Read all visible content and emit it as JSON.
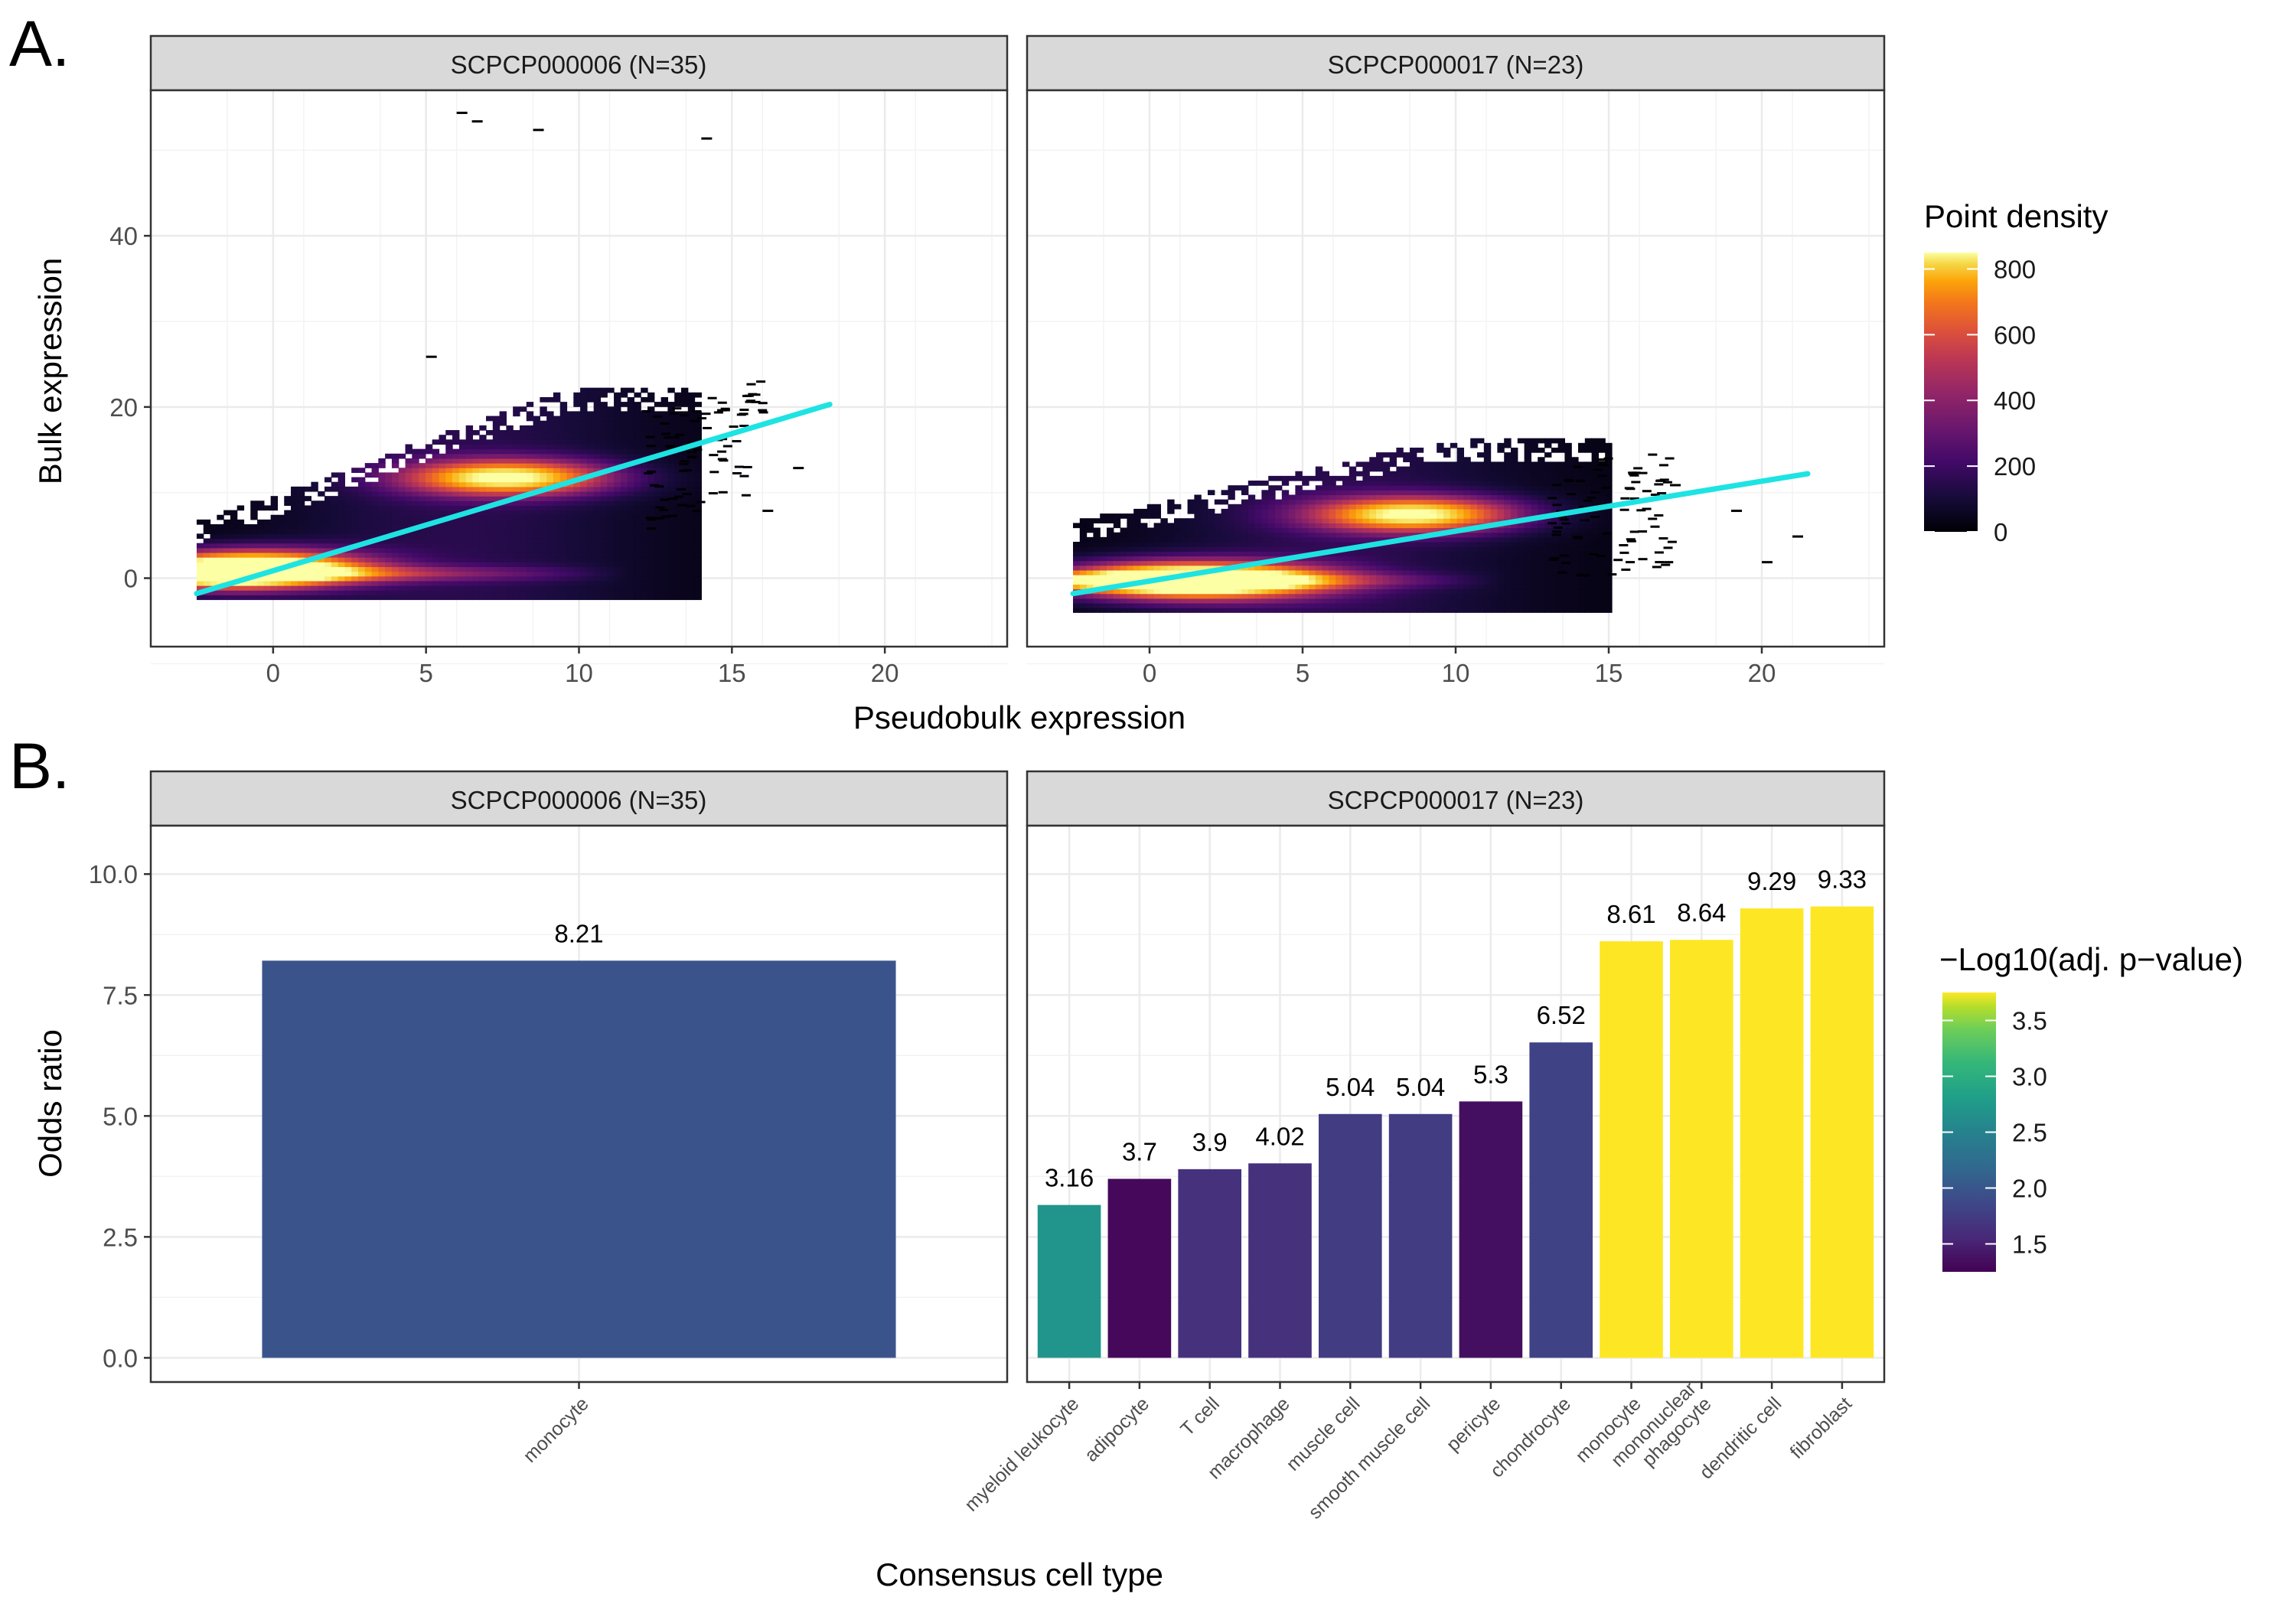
{
  "figure": {
    "panel_a_letter": "A.",
    "panel_b_letter": "B."
  },
  "colors": {
    "fit_line": "#1ee3e3",
    "strip_background": "#d9d9d9",
    "grid": "#ebebeb"
  },
  "chart_data": [
    {
      "type": "heatmap",
      "panel": "A",
      "xlabel": "Pseudobulk expression",
      "ylabel": "Bulk expression",
      "xlim": [
        -4,
        24
      ],
      "ylim": [
        -8,
        57
      ],
      "x_ticks": [
        0,
        5,
        10,
        15,
        20
      ],
      "y_ticks": [
        0,
        20,
        40
      ],
      "grid": true,
      "legend": {
        "title": "Point density",
        "ticks": [
          0,
          200,
          400,
          600,
          800
        ],
        "range": [
          0,
          850
        ],
        "colormap": "inferno",
        "placement": "right"
      },
      "facets": [
        {
          "label": "SCPCP000006 (N=35)",
          "fit_line": {
            "x": [
              -2.5,
              18.2
            ],
            "y": [
              -1.8,
              20.3
            ]
          },
          "dense_region": {
            "x": [
              -2.5,
              14
            ],
            "y": [
              -2.5,
              22
            ]
          },
          "hotspots": [
            {
              "x": 7.5,
              "y": 11.5,
              "density": 800
            },
            {
              "x": -2,
              "y": 0.5,
              "density": 800
            },
            {
              "x": 0,
              "y": 1,
              "density": 650
            }
          ],
          "outliers": [
            {
              "x": 6,
              "y": 54.5
            },
            {
              "x": 6.5,
              "y": 53.5
            },
            {
              "x": 8.5,
              "y": 52.5
            },
            {
              "x": 14,
              "y": 51.5
            },
            {
              "x": 5,
              "y": 26
            },
            {
              "x": 16,
              "y": 8
            },
            {
              "x": 17,
              "y": 13
            }
          ]
        },
        {
          "label": "SCPCP000017 (N=23)",
          "fit_line": {
            "x": [
              -2.5,
              21.5
            ],
            "y": [
              -1.8,
              12.2
            ]
          },
          "dense_region": {
            "x": [
              -2.5,
              15
            ],
            "y": [
              -4,
              16
            ]
          },
          "hotspots": [
            {
              "x": 8.5,
              "y": 7.2,
              "density": 800
            },
            {
              "x": 0,
              "y": -0.5,
              "density": 800
            },
            {
              "x": 3,
              "y": -0.5,
              "density": 700
            }
          ],
          "outliers": [
            {
              "x": 17,
              "y": 11
            },
            {
              "x": 19,
              "y": 8
            },
            {
              "x": 21,
              "y": 5
            },
            {
              "x": 20,
              "y": 2
            }
          ]
        }
      ]
    },
    {
      "type": "bar",
      "panel": "B",
      "xlabel": "Consensus cell type",
      "ylabel": "Odds ratio",
      "ylim": [
        -0.5,
        11
      ],
      "y_ticks": [
        0.0,
        2.5,
        5.0,
        7.5,
        10.0
      ],
      "y_tick_labels": [
        "0.0",
        "2.5",
        "5.0",
        "7.5",
        "10.0"
      ],
      "grid": true,
      "legend": {
        "title": "−Log10(adj. p−value)",
        "ticks": [
          1.5,
          2.0,
          2.5,
          3.0,
          3.5
        ],
        "range": [
          1.25,
          3.75
        ],
        "colormap": "viridis",
        "placement": "right"
      },
      "facets": [
        {
          "label": "SCPCP000006 (N=35)",
          "categories": [
            "monocyte"
          ],
          "values": [
            8.21
          ],
          "value_labels": [
            "8.21"
          ],
          "neg_log10_adj_p": [
            1.9
          ]
        },
        {
          "label": "SCPCP000017 (N=23)",
          "categories": [
            "myeloid leukocyte",
            "adipocyte",
            "T cell",
            "macrophage",
            "muscle cell",
            "smooth muscle cell",
            "pericyte",
            "chondrocyte",
            "monocyte",
            "mononuclear\nphagocyte",
            "dendritic cell",
            "fibroblast"
          ],
          "values": [
            3.16,
            3.7,
            3.9,
            4.02,
            5.04,
            5.04,
            5.3,
            6.52,
            8.61,
            8.64,
            9.29,
            9.33
          ],
          "value_labels": [
            "3.16",
            "3.7",
            "3.9",
            "4.02",
            "5.04",
            "5.04",
            "5.3",
            "6.52",
            "8.61",
            "8.64",
            "9.29",
            "9.33"
          ],
          "neg_log10_adj_p": [
            2.55,
            1.3,
            1.6,
            1.6,
            1.7,
            1.7,
            1.35,
            1.75,
            3.75,
            3.75,
            3.75,
            3.75
          ]
        }
      ]
    }
  ]
}
